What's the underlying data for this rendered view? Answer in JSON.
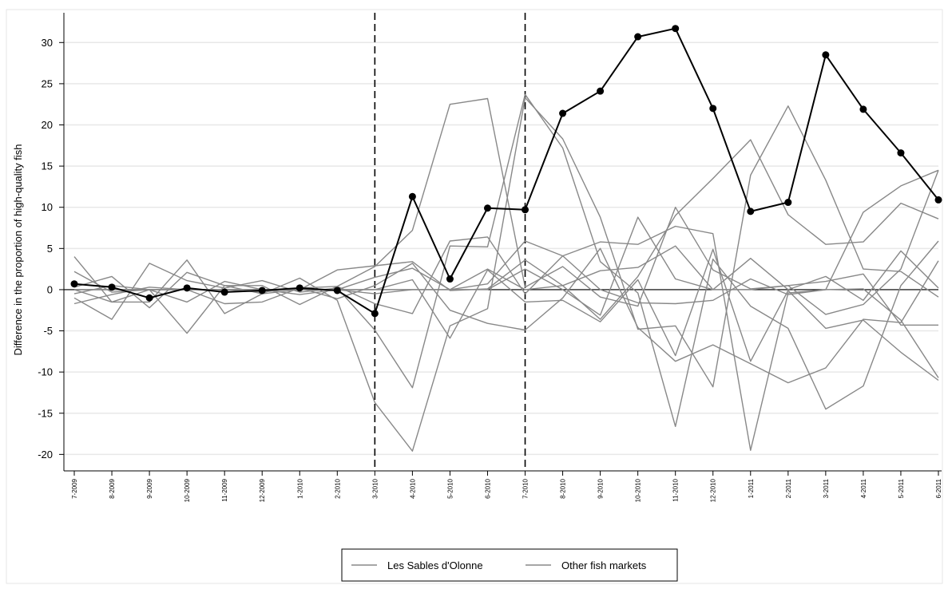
{
  "chart_data": {
    "type": "line",
    "title": "",
    "xlabel": "",
    "ylabel": "Difference in the proportion of high-quality fish",
    "ylim": [
      -22,
      34
    ],
    "yticks": [
      -20,
      -15,
      -10,
      -5,
      0,
      5,
      10,
      15,
      20,
      25,
      30
    ],
    "ytick_labels": [
      "-20",
      "-15",
      "-10",
      "-5",
      "0",
      "5",
      "10",
      "15",
      "20",
      "25",
      "30"
    ],
    "categories": [
      "7-2009",
      "8-2009",
      "9-2009",
      "10-2009",
      "11-2009",
      "12-2009",
      "1-2010",
      "2-2010",
      "3-2010",
      "4-2010",
      "5-2010",
      "6-2010",
      "7-2010",
      "8-2010",
      "9-2010",
      "10-2010",
      "11-2010",
      "12-2010",
      "1-2011",
      "2-2011",
      "3-2011",
      "4-2011",
      "5-2011",
      "6-2011"
    ],
    "vertical_reference_lines": [
      "3-2010",
      "7-2010"
    ],
    "horizontal_reference_line": 0,
    "grid": true,
    "legend_position": "bottom",
    "legend": [
      "Les Sables d'Olonne",
      "Other fish markets"
    ],
    "series": [
      {
        "name": "Les Sables d'Olonne",
        "color": "#000000",
        "marker": true,
        "values": [
          0.7,
          0.3,
          -1.0,
          0.2,
          -0.3,
          -0.1,
          0.2,
          -0.1,
          -2.9,
          11.3,
          1.3,
          9.9,
          9.7,
          21.4,
          24.1,
          30.7,
          31.7,
          22.0,
          9.5,
          10.6,
          28.5,
          21.9,
          16.6,
          10.9
        ]
      },
      {
        "name": "",
        "color": "#888888",
        "values": [
          4.0,
          -1.5,
          -1.5,
          3.6,
          -2.9,
          -0.5,
          1.4,
          -1.3,
          -13.7,
          -19.6,
          -4.4,
          -2.3,
          23.3,
          18.3,
          8.8,
          -4.8,
          -4.4,
          -11.8,
          13.9,
          22.3,
          13.3,
          2.5,
          2.2,
          -0.9
        ]
      },
      {
        "name": "",
        "color": "#888888",
        "values": [
          -1.0,
          -3.6,
          3.2,
          1.1,
          0.2,
          1.1,
          -0.3,
          0.2,
          -4.9,
          -11.9,
          5.3,
          5.2,
          23.7,
          17.2,
          3.4,
          -0.4,
          -16.6,
          3.7,
          -2.0,
          -4.7,
          -14.5,
          -11.7,
          0.5,
          5.9
        ]
      },
      {
        "name": "",
        "color": "#888888",
        "values": [
          2.2,
          -0.3,
          0.0,
          0.0,
          0.0,
          -0.3,
          0.2,
          0.4,
          2.8,
          7.2,
          22.5,
          23.2,
          0.3,
          2.8,
          -0.9,
          -2.0,
          10.0,
          2.4,
          0.1,
          0.5,
          -3.0,
          -1.8,
          2.5,
          14.5
        ]
      },
      {
        "name": "",
        "color": "#888888",
        "values": [
          0.3,
          1.6,
          -2.2,
          2.1,
          0.5,
          -0.5,
          0.0,
          2.4,
          2.9,
          3.4,
          -0.1,
          0.1,
          3.6,
          0.5,
          -3.6,
          1.6,
          9.0,
          13.5,
          18.2,
          9.1,
          5.5,
          5.8,
          10.5,
          8.6
        ]
      },
      {
        "name": "",
        "color": "#888888",
        "values": [
          -0.5,
          0.5,
          0.0,
          -5.3,
          0.5,
          0.5,
          -1.8,
          0.4,
          -1.7,
          -2.9,
          5.9,
          6.4,
          -0.5,
          4.1,
          5.8,
          5.5,
          7.7,
          6.8,
          -19.5,
          -0.4,
          0.0,
          0.1,
          -3.7,
          -10.7
        ]
      },
      {
        "name": "",
        "color": "#888888",
        "values": [
          -1.7,
          -0.6,
          0.3,
          0.0,
          -1.7,
          -1.5,
          0.2,
          -1.1,
          0.5,
          3.2,
          -2.5,
          -4.1,
          -4.9,
          -1.0,
          5.0,
          -4.6,
          -8.7,
          -6.7,
          -9.0,
          -11.3,
          -9.5,
          -3.6,
          -4.0,
          3.5
        ]
      },
      {
        "name": "",
        "color": "#888888",
        "values": [
          0.0,
          -1.5,
          0.0,
          -1.5,
          1.0,
          0.0,
          -0.6,
          0.0,
          1.5,
          2.6,
          0.0,
          0.0,
          2.5,
          0.0,
          -3.1,
          8.8,
          1.3,
          0.0,
          3.8,
          0.0,
          1.6,
          -1.3,
          4.7,
          0.2
        ]
      },
      {
        "name": "",
        "color": "#888888",
        "values": [
          0.0,
          0.0,
          0.0,
          0.0,
          0.0,
          0.0,
          0.0,
          0.0,
          -0.5,
          0.0,
          0.0,
          0.7,
          5.9,
          4.1,
          0.0,
          -1.6,
          -1.7,
          -1.3,
          1.3,
          -0.6,
          0.0,
          9.4,
          12.6,
          14.5
        ]
      },
      {
        "name": "",
        "color": "#888888",
        "values": [
          0.0,
          0.0,
          0.0,
          0.0,
          0.0,
          0.0,
          0.0,
          0.0,
          0.0,
          1.2,
          -5.9,
          2.4,
          -1.5,
          -1.3,
          -3.9,
          1.2,
          -8.0,
          4.9,
          -8.7,
          -0.1,
          -4.7,
          -3.7,
          -7.6,
          -11.0
        ]
      },
      {
        "name": "",
        "color": "#888888",
        "values": [
          0.0,
          0.0,
          0.0,
          0.0,
          0.0,
          0.0,
          0.0,
          0.0,
          0.0,
          0.0,
          0.0,
          2.5,
          0.0,
          0.5,
          2.3,
          2.7,
          5.3,
          0.0,
          0.0,
          0.5,
          1.0,
          1.9,
          -4.3,
          -4.3
        ]
      }
    ]
  }
}
